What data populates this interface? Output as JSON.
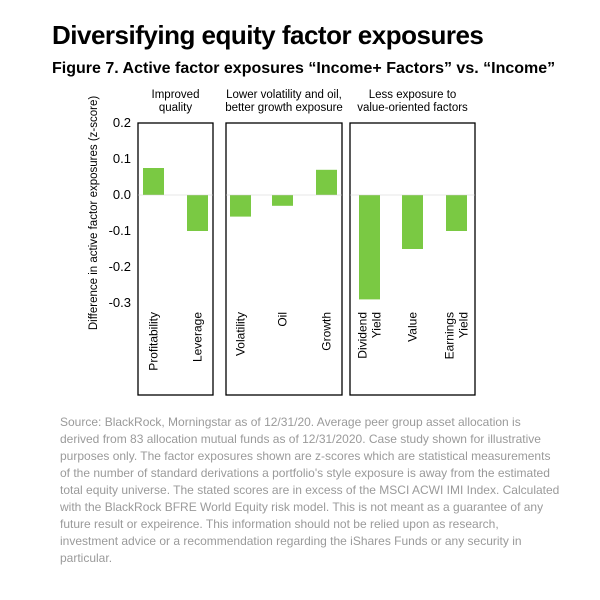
{
  "title": "Diversifying equity factor exposures",
  "subtitle": "Figure 7. Active factor exposures “Income+ Factors” vs. “Income”",
  "source": "Source: BlackRock, Morningstar as of 12/31/20. Average peer group asset allocation is derived from 83 allocation mutual funds as of 12/31/2020. Case study shown for illustrative purposes only. The factor exposures shown are z-scores which are statistical measurements of the number of standard derivations a portfolio's style exposure is away from the estimated total equity universe. The stated scores are in excess of the MSCI ACWI IMI Index. Calculated with the BlackRock BFRE World Equity risk model. This is not meant as a guarantee of any future result or expeirence. This information should not be relied upon as research, investment advice or a recommendation regarding the iShares Funds or any security in particular.",
  "colors": {
    "bar": "#7ac943",
    "frame": "#000000",
    "source_text": "#9a9a9a"
  },
  "chart_data": {
    "type": "bar",
    "ylabel": "Difference in active factor exposures (z-score)",
    "ylim": [
      -0.3,
      0.2
    ],
    "yticks": [
      "0.2",
      "0.1",
      "0.0",
      "-0.1",
      "-0.2",
      "-0.3"
    ],
    "yticks_values": [
      0.2,
      0.1,
      0.0,
      -0.1,
      -0.2,
      -0.3
    ],
    "grid": false,
    "groups": [
      {
        "label": [
          "Improved",
          "quality"
        ],
        "categories": [
          [
            "Profitability"
          ],
          [
            "Leverage"
          ]
        ],
        "values": [
          0.075,
          -0.1
        ]
      },
      {
        "label": [
          "Lower volatility and oil,",
          "better growth exposure"
        ],
        "categories": [
          [
            "Volatility"
          ],
          [
            "Oil"
          ],
          [
            "Growth"
          ]
        ],
        "values": [
          -0.06,
          -0.03,
          0.07
        ]
      },
      {
        "label": [
          "Less exposure to",
          "value-oriented factors"
        ],
        "categories": [
          [
            "Dividend",
            "Yield"
          ],
          [
            "Value"
          ],
          [
            "Earnings",
            "Yield"
          ]
        ],
        "values": [
          -0.29,
          -0.15,
          -0.1
        ]
      }
    ]
  }
}
